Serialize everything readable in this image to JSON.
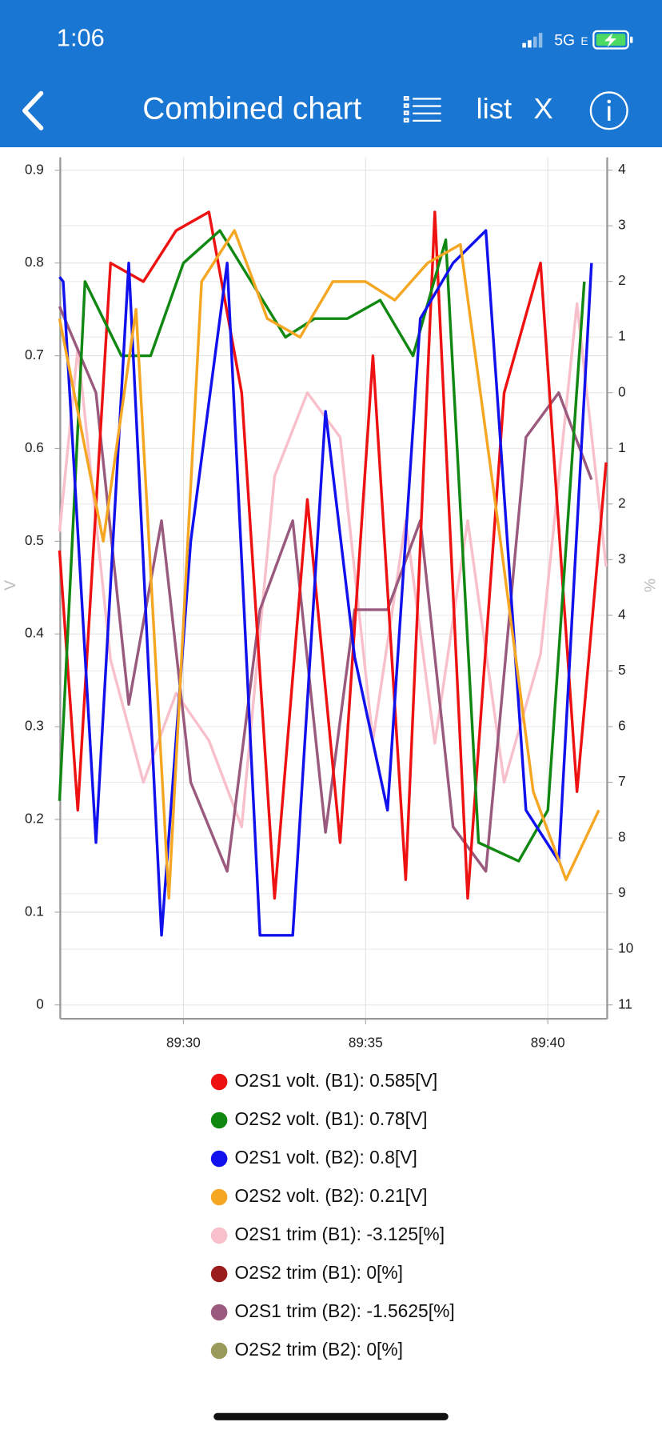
{
  "status_bar": {
    "time": "1:06",
    "network": "5G",
    "network_sub": "E"
  },
  "nav_bar": {
    "title": "Combined chart",
    "list_button": "list",
    "close_button": "X"
  },
  "chart_data": {
    "type": "line",
    "y_label": "V",
    "y2_label": "%",
    "xlim": [
      5366.62,
      5381.63
    ],
    "xticks": [
      {
        "value": 5370,
        "label": "89:30"
      },
      {
        "value": 5375,
        "label": "89:35"
      },
      {
        "value": 5380,
        "label": "89:40"
      }
    ],
    "ylim": [
      -0.015,
      0.914
    ],
    "yticks": [
      0,
      0.1,
      0.2,
      0.3,
      0.4,
      0.5,
      0.6,
      0.7,
      0.8,
      0.9
    ],
    "y2lim": [
      -11.25,
      4.23
    ],
    "y2ticks": [
      4,
      3,
      2,
      1,
      0,
      {
        "value": -1,
        "label": "1"
      },
      {
        "value": -2,
        "label": "2"
      },
      {
        "value": -3,
        "label": "3"
      },
      {
        "value": -4,
        "label": "4"
      },
      {
        "value": -5,
        "label": "5"
      },
      {
        "value": -6,
        "label": "6"
      },
      {
        "value": -7,
        "label": "7"
      },
      {
        "value": -8,
        "label": "8"
      },
      {
        "value": -9,
        "label": "9"
      },
      {
        "value": -10,
        "label": "10"
      },
      {
        "value": -11,
        "label": "11"
      }
    ],
    "grid": true,
    "legend": "bottom",
    "series": [
      {
        "name": "O2S1 volt. (B1): 0.585[V]",
        "color": "#ee1111",
        "x": [
          5366.6,
          5367.1,
          5368.0,
          5368.9,
          5369.8,
          5370.7,
          5371.6,
          5372.5,
          5373.4,
          5374.3,
          5375.2,
          5376.1,
          5376.9,
          5377.8,
          5378.8,
          5379.8,
          5380.8,
          5381.6
        ],
        "values": [
          0.49,
          0.21,
          0.8,
          0.78,
          0.835,
          0.855,
          0.66,
          0.115,
          0.545,
          0.175,
          0.7,
          0.135,
          0.855,
          0.115,
          0.66,
          0.8,
          0.23,
          0.585
        ]
      },
      {
        "name": "O2S2 volt. (B1): 0.78[V]",
        "color": "#118811",
        "x": [
          5366.6,
          5367.3,
          5368.3,
          5369.1,
          5370.0,
          5371.0,
          5372.8,
          5373.6,
          5374.5,
          5375.4,
          5376.3,
          5377.2,
          5378.1,
          5379.2,
          5380.0,
          5381.0
        ],
        "values": [
          0.22,
          0.78,
          0.7,
          0.7,
          0.8,
          0.835,
          0.72,
          0.74,
          0.74,
          0.76,
          0.7,
          0.825,
          0.175,
          0.155,
          0.21,
          0.78
        ]
      },
      {
        "name": "O2S1 volt. (B2): 0.8[V]",
        "color": "#1111ee",
        "x": [
          5366.6,
          5366.7,
          5367.6,
          5368.5,
          5369.4,
          5370.2,
          5371.2,
          5372.1,
          5373.0,
          5373.9,
          5374.7,
          5375.6,
          5376.5,
          5377.4,
          5378.3,
          5379.4,
          5380.3,
          5381.2
        ],
        "values": [
          0.785,
          0.78,
          0.175,
          0.8,
          0.075,
          0.5,
          0.8,
          0.075,
          0.075,
          0.64,
          0.375,
          0.21,
          0.74,
          0.8,
          0.835,
          0.21,
          0.155,
          0.8
        ]
      },
      {
        "name": "O2S2 volt. (B2): 0.21[V]",
        "color": "#f5a623",
        "x": [
          5366.6,
          5367.8,
          5368.7,
          5369.6,
          5370.5,
          5371.4,
          5372.3,
          5373.2,
          5374.1,
          5375.0,
          5375.8,
          5376.7,
          5377.6,
          5378.7,
          5379.6,
          5380.5,
          5381.4
        ],
        "values": [
          0.74,
          0.5,
          0.75,
          0.115,
          0.78,
          0.835,
          0.74,
          0.72,
          0.78,
          0.78,
          0.76,
          0.8,
          0.82,
          0.5,
          0.23,
          0.135,
          0.21
        ]
      },
      {
        "name": "O2S1 trim (B1): -3.125[%]",
        "color": "#f8c0cb",
        "axis": "y2",
        "x": [
          5366.6,
          5367.1,
          5368.0,
          5368.9,
          5369.8,
          5370.7,
          5371.6,
          5372.5,
          5373.4,
          5374.3,
          5375.2,
          5376.1,
          5376.9,
          5377.8,
          5378.8,
          5379.8,
          5380.8,
          5381.6
        ],
        "values": [
          -2.5,
          0.8,
          -4.8,
          -7.0,
          -5.4,
          -6.25,
          -7.8,
          -1.5,
          0,
          -0.8,
          -6.25,
          -2.3,
          -6.3,
          -2.3,
          -7.0,
          -4.7,
          1.6,
          -3.125
        ]
      },
      {
        "name": "O2S2 trim (B1): 0[%]",
        "color": "#9b1c1c",
        "axis": "y2"
      },
      {
        "name": "O2S1 trim (B2): -1.5625[%]",
        "color": "#9a5a7e",
        "axis": "y2",
        "x": [
          5366.6,
          5367.6,
          5368.5,
          5369.4,
          5370.2,
          5371.2,
          5372.1,
          5373.0,
          5373.9,
          5374.7,
          5375.6,
          5376.5,
          5377.4,
          5378.3,
          5379.4,
          5380.3,
          5381.2
        ],
        "values": [
          1.55,
          0,
          -5.6,
          -2.3,
          -7.0,
          -8.6,
          -3.9,
          -2.3,
          -7.9,
          -3.9,
          -3.9,
          -2.3,
          -7.8,
          -8.6,
          -0.8,
          0,
          -1.5625
        ]
      },
      {
        "name": "O2S2 trim (B2): 0[%]",
        "color": "#9a9a5a",
        "axis": "y2"
      }
    ]
  }
}
